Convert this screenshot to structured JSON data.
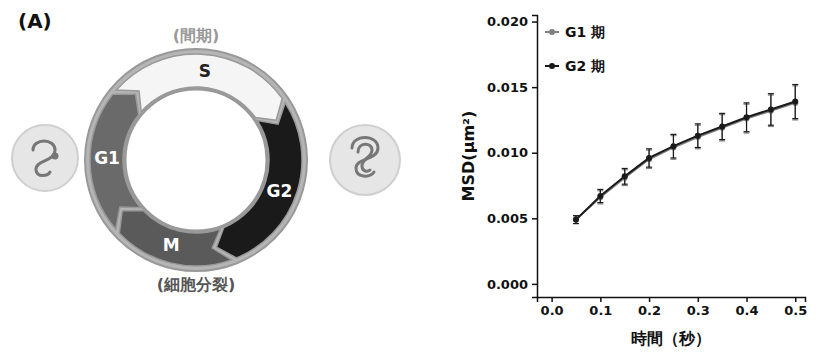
{
  "panel_label": "(A)",
  "diagram": {
    "top_label": "(間期)",
    "bottom_label": "(細胞分裂)",
    "phases": [
      "S",
      "G2",
      "M",
      "G1"
    ]
  },
  "chart_data": {
    "type": "line",
    "x": [
      0.05,
      0.1,
      0.15,
      0.2,
      0.25,
      0.3,
      0.35,
      0.4,
      0.45,
      0.5
    ],
    "series": [
      {
        "name": "G1 期",
        "color": "#7f7f7f",
        "marker": "circle",
        "values": [
          0.0049,
          0.0066,
          0.0081,
          0.0095,
          0.0104,
          0.0112,
          0.0119,
          0.0126,
          0.0132,
          0.0138
        ],
        "errors": [
          0.0003,
          0.0005,
          0.0006,
          0.0007,
          0.0009,
          0.0009,
          0.001,
          0.0011,
          0.0012,
          0.0013
        ]
      },
      {
        "name": "G2 期",
        "color": "#1a1a1a",
        "marker": "circle",
        "values": [
          0.0049,
          0.0067,
          0.0082,
          0.0096,
          0.0105,
          0.0113,
          0.012,
          0.0127,
          0.0133,
          0.0139
        ],
        "errors": [
          0.0003,
          0.0005,
          0.0006,
          0.0007,
          0.0009,
          0.0009,
          0.001,
          0.0011,
          0.0012,
          0.0013
        ]
      }
    ],
    "x_label": "時間（秒）",
    "y_label": "MSD(μm²)",
    "xlim": [
      -0.03,
      0.52
    ],
    "xticks": [
      {
        "value": 0,
        "label": "0.0"
      },
      0.1,
      0.2,
      0.3,
      0.4,
      0.5
    ],
    "ylim": [
      -0.001,
      0.0205
    ],
    "yticks": [
      {
        "value": 0,
        "label": "0.000"
      },
      {
        "value": 0.005,
        "label": "0.005"
      },
      {
        "value": 0.01,
        "label": "0.010"
      },
      {
        "value": 0.015,
        "label": "0.015"
      },
      {
        "value": 0.02,
        "label": "0.020"
      }
    ],
    "legend": "upper left"
  }
}
